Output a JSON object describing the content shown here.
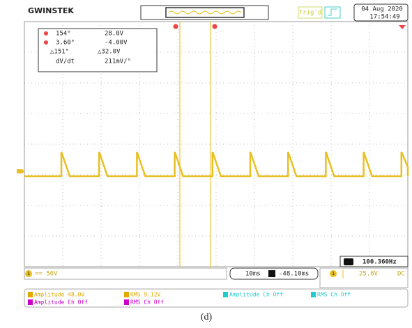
{
  "header": {
    "brand": "GWINSTEK",
    "trigger_status": "Trig'd",
    "date": "04 Aug 2020",
    "time": "17:54:49"
  },
  "cursor_readout": {
    "cursor_1": [
      "154°",
      "28.0V"
    ],
    "cursor_2": [
      "3.60°",
      "-4.00V"
    ],
    "delta": [
      "△151°",
      "△32.0V"
    ],
    "slope": [
      "dV/dt",
      "211mV/°"
    ]
  },
  "frequency": "100.360Hz",
  "status_bar": {
    "channel": "1",
    "scale": "== 50V",
    "timebase": "10ms",
    "position": "-48.10ms",
    "trigger_channel": "1",
    "trigger_level": "25.6V",
    "coupling": "DC"
  },
  "measurements": [
    [
      "Amplitude 48.0V",
      "RMS 9.12V",
      "Amplitude Ch Off",
      "RMS Ch Off"
    ],
    [
      "Amplitude Ch Off",
      "RMS Ch Off"
    ]
  ],
  "caption": "(d)"
}
